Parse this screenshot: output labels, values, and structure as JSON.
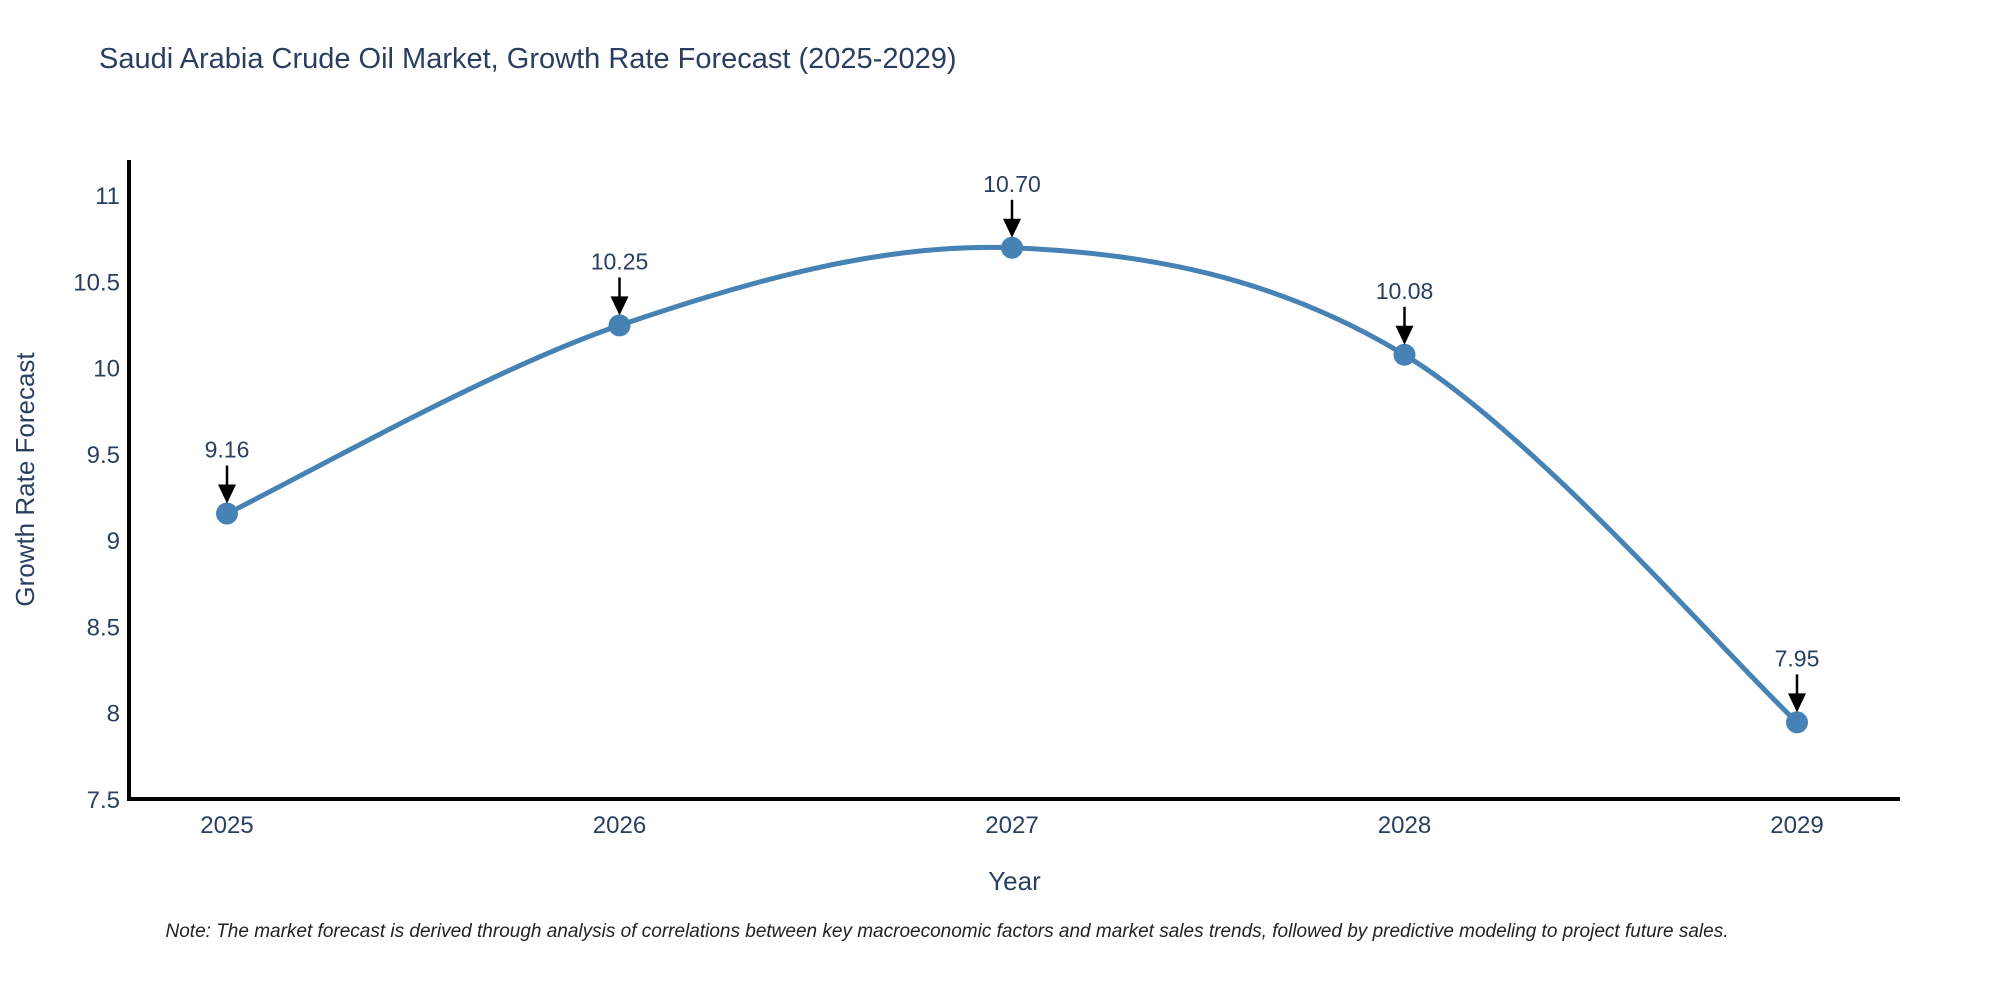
{
  "chart": {
    "title": "Saudi Arabia Crude Oil Market, Growth Rate Forecast (2025-2029)",
    "note": "Note: The market forecast is derived through analysis of correlations between key macroeconomic factors and market sales trends, followed by predictive modeling to project future sales."
  },
  "chart_data": {
    "type": "line",
    "title": "Saudi Arabia Crude Oil Market, Growth Rate Forecast (2025-2029)",
    "categories": [
      "2025",
      "2026",
      "2027",
      "2028",
      "2029"
    ],
    "x": [
      2025,
      2026,
      2027,
      2028,
      2029
    ],
    "values": [
      9.16,
      10.25,
      10.7,
      10.08,
      7.95
    ],
    "point_labels": [
      "9.16",
      "10.25",
      "10.70",
      "10.08",
      "7.95"
    ],
    "xlabel": "Year",
    "ylabel": "Growth Rate Forecast",
    "ylim": [
      7.5,
      11.2
    ],
    "yticks": [
      7.5,
      8,
      8.5,
      9,
      9.5,
      10,
      10.5,
      11
    ],
    "ytick_labels": [
      "7.5",
      "8",
      "8.5",
      "9",
      "9.5",
      "10",
      "10.5",
      "11"
    ],
    "line_shape": "spline",
    "grid": false,
    "legend": "none",
    "annotations": "value-labels-with-down-arrows",
    "colors": {
      "line": "#4682b4",
      "marker": "#4682b4",
      "axis": "#000000",
      "tick_text": "#2a3f5f",
      "title_text": "#2a3f5f",
      "annotation_text": "#2a3f5f",
      "arrow": "#000000",
      "note_text": "#222222",
      "background": "#ffffff"
    }
  }
}
